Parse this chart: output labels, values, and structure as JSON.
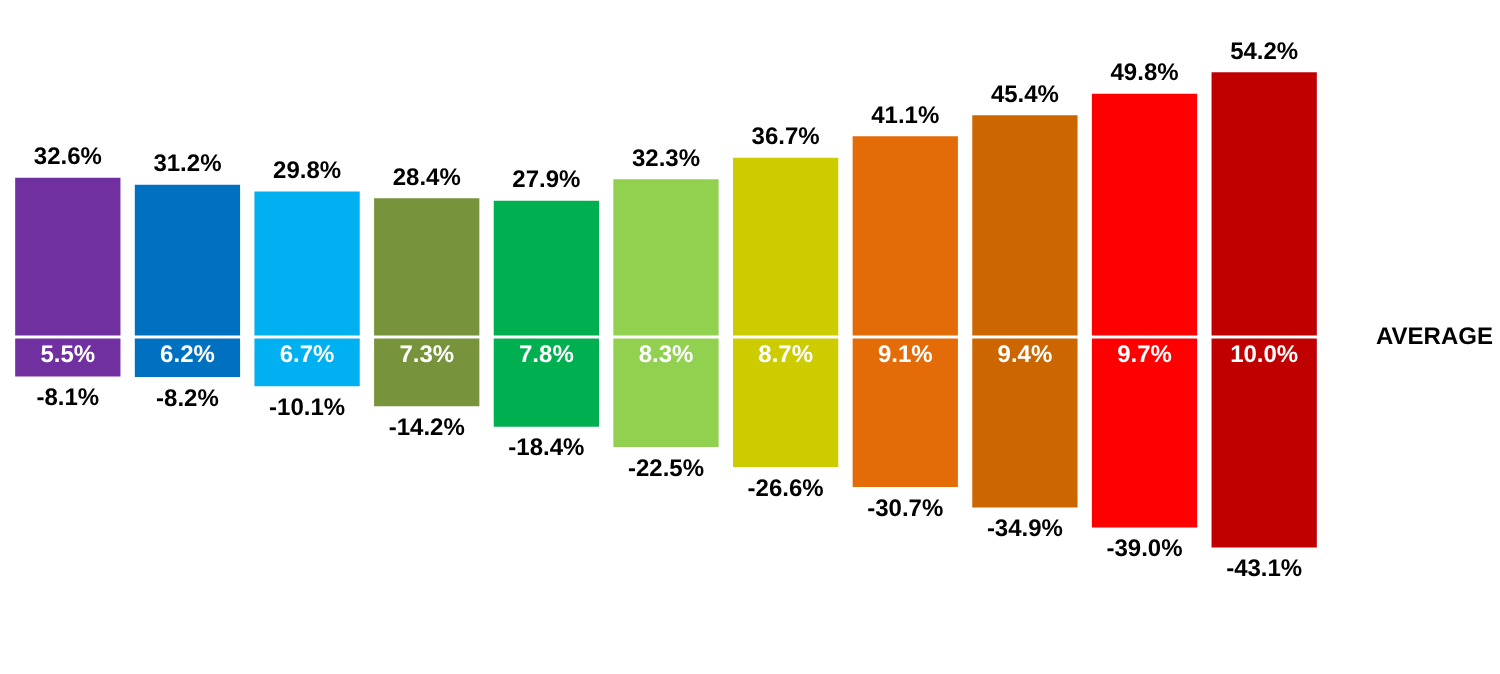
{
  "chart_data": {
    "type": "bar",
    "stacked": true,
    "categories": [
      null,
      null,
      null,
      null,
      null,
      null,
      null,
      null,
      null,
      null,
      null
    ],
    "tick_labels": false,
    "series": [
      {
        "colors": [
          "#7030a0",
          "#0070c0",
          "#00b0f0",
          "#77933c",
          "#00b050",
          "#92d050",
          "#cccc00",
          "#e36c09",
          "#cc6600",
          "#ff0000",
          "#c00000"
        ],
        "values": [
          32.6,
          31.2,
          29.8,
          28.4,
          27.9,
          32.3,
          36.7,
          41.1,
          45.4,
          49.8,
          54.2
        ],
        "value_labels": [
          "32.6%",
          "31.2%",
          "29.8%",
          "28.4%",
          "27.9%",
          "32.3%",
          "36.7%",
          "41.1%",
          "45.4%",
          "49.8%",
          "54.2%"
        ]
      },
      {
        "colors": [
          "#7030a0",
          "#0070c0",
          "#00b0f0",
          "#77933c",
          "#00b050",
          "#92d050",
          "#cccc00",
          "#e36c09",
          "#cc6600",
          "#ff0000",
          "#c00000"
        ],
        "values": [
          -8.1,
          -8.2,
          -10.1,
          -14.2,
          -18.4,
          -22.5,
          -26.6,
          -30.7,
          -34.9,
          -39.0,
          -43.1
        ],
        "value_labels": [
          "-8.1%",
          "-8.2%",
          "-10.1%",
          "-14.2%",
          "-18.4%",
          "-22.5%",
          "-26.6%",
          "-30.7%",
          "-34.9%",
          "-39.0%",
          "-43.1%"
        ]
      }
    ],
    "annotations": [
      {
        "text": "5.5%",
        "y": 0
      },
      {
        "text": "6.2%",
        "y": 0
      },
      {
        "text": "6.7%",
        "y": 0
      },
      {
        "text": "7.3%",
        "y": 0
      },
      {
        "text": "7.8%",
        "y": 0
      },
      {
        "text": "8.3%",
        "y": 0
      },
      {
        "text": "8.7%",
        "y": 0
      },
      {
        "text": "9.1%",
        "y": 0
      },
      {
        "text": "9.4%",
        "y": 0
      },
      {
        "text": "9.7%",
        "y": 0
      },
      {
        "text": "10.0%",
        "y": 0
      },
      "AVERAGE"
    ]
  }
}
